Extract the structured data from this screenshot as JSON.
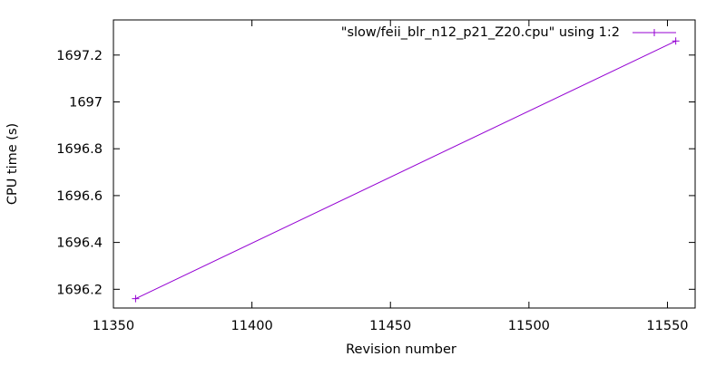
{
  "chart_data": {
    "type": "line",
    "title": "",
    "xlabel": "Revision number",
    "ylabel": "CPU time (s)",
    "xlim": [
      11350,
      11560
    ],
    "ylim": [
      1696.12,
      1697.35
    ],
    "x_ticks": [
      11350,
      11400,
      11450,
      11500,
      11550
    ],
    "y_ticks": [
      1696.2,
      1696.4,
      1696.6,
      1696.8,
      1697,
      1697.2
    ],
    "x_tick_labels": [
      "11350",
      "11400",
      "11450",
      "11500",
      "11550"
    ],
    "y_tick_labels": [
      "1696.2",
      "1696.4",
      "1696.6",
      "1696.8",
      "1697",
      "1697.2"
    ],
    "grid": false,
    "legend_position": "top-right",
    "series": [
      {
        "name": "\"slow/feii_blr_n12_p21_Z20.cpu\" using 1:2",
        "color": "#9400d3",
        "marker": "plus",
        "points": [
          {
            "x": 11358,
            "y": 1696.16
          },
          {
            "x": 11553,
            "y": 1697.26
          }
        ]
      }
    ]
  }
}
